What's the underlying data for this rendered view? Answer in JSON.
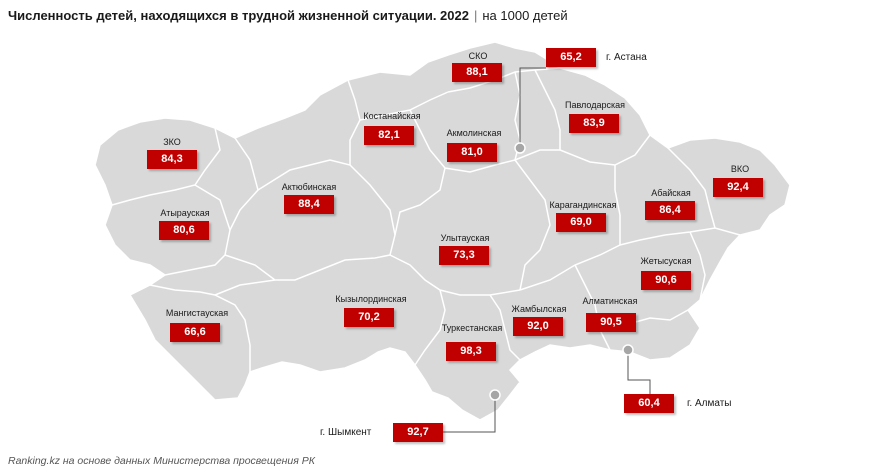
{
  "title": {
    "main": "Численность детей, находящихся в трудной жизненной ситуации. 2022",
    "separator": "|",
    "unit": "на 1000 детей"
  },
  "source": "Ranking.kz на основе данных Министерства просвещения РК",
  "colors": {
    "land": "#d9d9d9",
    "border": "#ffffff",
    "value_box": "#c00000",
    "leader_line": "#555555",
    "city_dot": "#a6a6a6"
  },
  "regions": [
    {
      "name": "СКО",
      "value": "88,1"
    },
    {
      "name": "Костанайская",
      "value": "82,1"
    },
    {
      "name": "Акмолинская",
      "value": "81,0"
    },
    {
      "name": "Павлодарская",
      "value": "83,9"
    },
    {
      "name": "ЗКО",
      "value": "84,3"
    },
    {
      "name": "Актюбинская",
      "value": "88,4"
    },
    {
      "name": "ВКО",
      "value": "92,4"
    },
    {
      "name": "Абайская",
      "value": "86,4"
    },
    {
      "name": "Атырауская",
      "value": "80,6"
    },
    {
      "name": "Карагандинская",
      "value": "69,0"
    },
    {
      "name": "Улытауская",
      "value": "73,3"
    },
    {
      "name": "Жетысуская",
      "value": "90,6"
    },
    {
      "name": "Мангистауская",
      "value": "66,6"
    },
    {
      "name": "Кызылординская",
      "value": "70,2"
    },
    {
      "name": "Жамбылская",
      "value": "92,0"
    },
    {
      "name": "Алматинская",
      "value": "90,5"
    },
    {
      "name": "Туркестанская",
      "value": "98,3"
    }
  ],
  "cities": [
    {
      "name": "г. Астана",
      "value": "65,2"
    },
    {
      "name": "г. Алматы",
      "value": "60,4"
    },
    {
      "name": "г. Шымкент",
      "value": "92,7"
    }
  ]
}
